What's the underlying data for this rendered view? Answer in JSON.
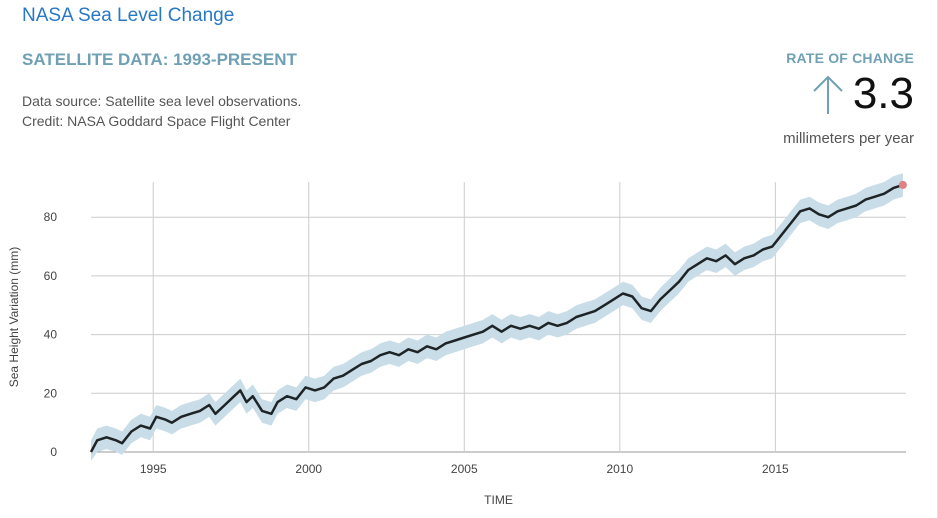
{
  "header": {
    "title": "NASA Sea Level Change",
    "subtitle": "SATELLITE DATA: 1993-PRESENT",
    "source_line": "Data source: Satellite sea level observations.",
    "credit_line": "Credit: NASA Goddard Space Flight Center"
  },
  "rate": {
    "label": "RATE OF CHANGE",
    "value": "3.3",
    "unit": "millimeters per year",
    "direction_icon": "arrow-up-icon"
  },
  "colors": {
    "line": "#1e2326",
    "band": "#c8dde7",
    "grid": "#cccccc",
    "endpoint": "#e08080",
    "title_blue": "#2878c8",
    "accent_teal": "#6fa0b4"
  },
  "chart_data": {
    "type": "line",
    "xlabel": "TIME",
    "ylabel": "Sea Height Variation (mm)",
    "xlim": [
      1993.0,
      2019.2
    ],
    "ylim": [
      0,
      92
    ],
    "x_ticks": [
      1995,
      2000,
      2005,
      2010,
      2015
    ],
    "y_ticks": [
      0,
      20,
      40,
      60,
      80
    ],
    "grid": true,
    "uncertainty_band_mm": 4,
    "series": [
      {
        "points": [
          [
            1993.0,
            0
          ],
          [
            1993.2,
            4
          ],
          [
            1993.5,
            5
          ],
          [
            1993.8,
            4
          ],
          [
            1994.0,
            3
          ],
          [
            1994.3,
            7
          ],
          [
            1994.6,
            9
          ],
          [
            1994.9,
            8
          ],
          [
            1995.1,
            12
          ],
          [
            1995.4,
            11
          ],
          [
            1995.6,
            10
          ],
          [
            1995.9,
            12
          ],
          [
            1996.2,
            13
          ],
          [
            1996.5,
            14
          ],
          [
            1996.8,
            16
          ],
          [
            1997.0,
            13
          ],
          [
            1997.3,
            16
          ],
          [
            1997.6,
            19
          ],
          [
            1997.8,
            21
          ],
          [
            1998.0,
            17
          ],
          [
            1998.2,
            19
          ],
          [
            1998.5,
            14
          ],
          [
            1998.8,
            13
          ],
          [
            1999.0,
            17
          ],
          [
            1999.3,
            19
          ],
          [
            1999.6,
            18
          ],
          [
            1999.9,
            22
          ],
          [
            2000.2,
            21
          ],
          [
            2000.5,
            22
          ],
          [
            2000.8,
            25
          ],
          [
            2001.1,
            26
          ],
          [
            2001.4,
            28
          ],
          [
            2001.7,
            30
          ],
          [
            2002.0,
            31
          ],
          [
            2002.3,
            33
          ],
          [
            2002.6,
            34
          ],
          [
            2002.9,
            33
          ],
          [
            2003.2,
            35
          ],
          [
            2003.5,
            34
          ],
          [
            2003.8,
            36
          ],
          [
            2004.1,
            35
          ],
          [
            2004.4,
            37
          ],
          [
            2004.7,
            38
          ],
          [
            2005.0,
            39
          ],
          [
            2005.3,
            40
          ],
          [
            2005.6,
            41
          ],
          [
            2005.9,
            43
          ],
          [
            2006.2,
            41
          ],
          [
            2006.5,
            43
          ],
          [
            2006.8,
            42
          ],
          [
            2007.1,
            43
          ],
          [
            2007.4,
            42
          ],
          [
            2007.7,
            44
          ],
          [
            2008.0,
            43
          ],
          [
            2008.3,
            44
          ],
          [
            2008.6,
            46
          ],
          [
            2008.9,
            47
          ],
          [
            2009.2,
            48
          ],
          [
            2009.5,
            50
          ],
          [
            2009.8,
            52
          ],
          [
            2010.1,
            54
          ],
          [
            2010.4,
            53
          ],
          [
            2010.7,
            49
          ],
          [
            2011.0,
            48
          ],
          [
            2011.3,
            52
          ],
          [
            2011.6,
            55
          ],
          [
            2011.9,
            58
          ],
          [
            2012.2,
            62
          ],
          [
            2012.5,
            64
          ],
          [
            2012.8,
            66
          ],
          [
            2013.1,
            65
          ],
          [
            2013.4,
            67
          ],
          [
            2013.7,
            64
          ],
          [
            2014.0,
            66
          ],
          [
            2014.3,
            67
          ],
          [
            2014.6,
            69
          ],
          [
            2014.9,
            70
          ],
          [
            2015.2,
            74
          ],
          [
            2015.5,
            78
          ],
          [
            2015.8,
            82
          ],
          [
            2016.1,
            83
          ],
          [
            2016.4,
            81
          ],
          [
            2016.7,
            80
          ],
          [
            2017.0,
            82
          ],
          [
            2017.3,
            83
          ],
          [
            2017.6,
            84
          ],
          [
            2017.9,
            86
          ],
          [
            2018.2,
            87
          ],
          [
            2018.5,
            88
          ],
          [
            2018.8,
            90
          ],
          [
            2019.1,
            91
          ]
        ]
      }
    ]
  }
}
